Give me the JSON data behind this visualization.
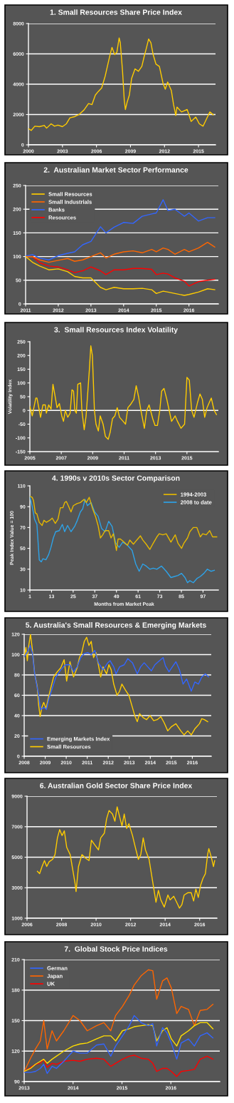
{
  "chart_data": [
    {
      "type": "line",
      "title": "1. Small Resources Share Price Index",
      "xlim": [
        2000,
        2016.5
      ],
      "xticks": [
        2000,
        2003,
        2006,
        2009,
        2012,
        2015
      ],
      "ylim": [
        0,
        8000
      ],
      "yticks": [
        0,
        2000,
        4000,
        6000,
        8000
      ],
      "grid": "y",
      "series": [
        {
          "color": "#ffcc00",
          "x": [
            2000.0,
            2000.25,
            2000.56,
            2000.97,
            2001.39,
            2001.6,
            2002.0,
            2002.3,
            2002.6,
            2003.0,
            2003.35,
            2003.66,
            2004.08,
            2004.5,
            2004.9,
            2005.3,
            2005.6,
            2005.9,
            2006.15,
            2006.46,
            2006.77,
            2007.08,
            2007.2,
            2007.37,
            2007.6,
            2007.8,
            2008.0,
            2008.1,
            2008.3,
            2008.45,
            2008.55,
            2008.7,
            2008.9,
            2009.1,
            2009.4,
            2009.7,
            2010.0,
            2010.2,
            2010.42,
            2010.6,
            2010.8,
            2011.0,
            2011.25,
            2011.55,
            2011.87,
            2012.07,
            2012.28,
            2012.6,
            2012.8,
            2013.0,
            2013.1,
            2013.5,
            2014.0,
            2014.35,
            2014.76,
            2015.07,
            2015.4,
            2015.6,
            2016.0,
            2016.3
          ],
          "values": [
            1070,
            950,
            1230,
            1200,
            1280,
            1100,
            1390,
            1230,
            1300,
            1200,
            1390,
            1780,
            1860,
            2020,
            2300,
            2720,
            2650,
            3280,
            3510,
            3750,
            4540,
            5560,
            5950,
            6430,
            5950,
            6110,
            7050,
            6740,
            4850,
            2960,
            2330,
            2800,
            3280,
            4380,
            5010,
            4850,
            5170,
            5800,
            6430,
            6980,
            6740,
            5950,
            5320,
            5170,
            4060,
            3670,
            4140,
            3590,
            2650,
            1940,
            2490,
            2170,
            2330,
            1540,
            1830,
            1390,
            1230,
            1540,
            2170,
            1980
          ]
        }
      ]
    },
    {
      "type": "line",
      "title": "2.  Australian Market Sector Performance",
      "xlim": [
        2011,
        2016.9
      ],
      "xticks": [
        2011,
        2012,
        2013,
        2014,
        2015,
        2016
      ],
      "ylim": [
        0,
        250
      ],
      "yticks": [
        0,
        50,
        100,
        150,
        200,
        250
      ],
      "grid": "y",
      "legend": "top left",
      "x": [
        2011.0,
        2011.21,
        2011.43,
        2011.71,
        2012.0,
        2012.29,
        2012.5,
        2012.75,
        2013.0,
        2013.29,
        2013.46,
        2013.71,
        2014.0,
        2014.29,
        2014.57,
        2014.86,
        2015.0,
        2015.21,
        2015.36,
        2015.57,
        2015.86,
        2016.0,
        2016.29,
        2016.57,
        2016.79
      ],
      "series": [
        {
          "name": "Small Resources",
          "color": "#ffcc00",
          "values": [
            100,
            88,
            80,
            72,
            74,
            68,
            58,
            55,
            55,
            35,
            30,
            35,
            32,
            32,
            33,
            30,
            22,
            27,
            25,
            22,
            18,
            20,
            25,
            32,
            30
          ]
        },
        {
          "name": "Small Industrials",
          "color": "#ff6600",
          "values": [
            100,
            100,
            93,
            88,
            92,
            96,
            90,
            93,
            100,
            108,
            97,
            105,
            110,
            112,
            108,
            115,
            110,
            118,
            115,
            105,
            115,
            110,
            118,
            130,
            120
          ]
        },
        {
          "name": "Banks",
          "color": "#3366ff",
          "values": [
            101,
            104,
            97,
            93,
            102,
            107,
            110,
            125,
            132,
            163,
            150,
            162,
            172,
            170,
            185,
            190,
            192,
            220,
            197,
            200,
            185,
            192,
            175,
            182,
            182
          ]
        },
        {
          "name": "Resources",
          "color": "#ff0000",
          "values": [
            100,
            100,
            87,
            80,
            78,
            72,
            66,
            70,
            78,
            70,
            62,
            72,
            72,
            75,
            75,
            73,
            62,
            65,
            63,
            55,
            48,
            38,
            47,
            50,
            52
          ]
        }
      ]
    },
    {
      "type": "line",
      "title": "3.  Small Resources Index Volatility",
      "ylabel": "Volatility Index",
      "xlim": [
        2005,
        2017.0
      ],
      "xticks": [
        2005,
        2007,
        2009,
        2011,
        2013,
        2015
      ],
      "ylim": [
        -150,
        250
      ],
      "yticks": [
        -150,
        -100,
        -50,
        0,
        50,
        100,
        150,
        200,
        250
      ],
      "grid": false,
      "ref_lines": [
        {
          "axis": "y",
          "value": 0,
          "color": "#ffffff"
        }
      ],
      "series": [
        {
          "color": "#ffcc00",
          "x": [
            2005.0,
            2005.15,
            2005.38,
            2005.45,
            2005.6,
            2005.68,
            2005.83,
            2005.98,
            2006.05,
            2006.2,
            2006.35,
            2006.47,
            2006.58,
            2006.73,
            2006.88,
            2007.03,
            2007.14,
            2007.26,
            2007.41,
            2007.56,
            2007.68,
            2007.78,
            2007.86,
            2007.96,
            2008.05,
            2008.23,
            2008.31,
            2008.46,
            2008.58,
            2008.68,
            2008.79,
            2008.88,
            2008.98,
            2009.11,
            2009.21,
            2009.36,
            2009.48,
            2009.66,
            2009.81,
            2009.99,
            2010.11,
            2010.26,
            2010.41,
            2010.56,
            2010.71,
            2010.94,
            2011.09,
            2011.24,
            2011.39,
            2011.62,
            2011.77,
            2011.92,
            2012.07,
            2012.29,
            2012.44,
            2012.59,
            2012.82,
            2012.97,
            2013.12,
            2013.27,
            2013.39,
            2013.54,
            2013.72,
            2013.87,
            2014.02,
            2014.25,
            2014.4,
            2014.62,
            2014.85,
            2015.0,
            2015.15,
            2015.3,
            2015.45,
            2015.68,
            2015.83,
            2015.98,
            2016.13,
            2016.28,
            2016.43,
            2016.55,
            2016.73,
            2016.88
          ],
          "values": [
            15,
            -20,
            45,
            45,
            0,
            -25,
            20,
            20,
            -10,
            20,
            5,
            95,
            60,
            10,
            25,
            -20,
            -40,
            0,
            -25,
            -10,
            75,
            70,
            0,
            -10,
            95,
            100,
            0,
            -70,
            -20,
            60,
            150,
            235,
            200,
            0,
            -50,
            -75,
            -20,
            -50,
            -95,
            -105,
            -80,
            -30,
            -20,
            10,
            -25,
            -40,
            -50,
            10,
            20,
            40,
            90,
            50,
            0,
            -65,
            0,
            20,
            -30,
            -55,
            -55,
            0,
            70,
            80,
            40,
            0,
            -40,
            -20,
            -40,
            -65,
            -50,
            120,
            110,
            0,
            -25,
            30,
            60,
            40,
            -25,
            10,
            30,
            45,
            0,
            -15
          ]
        }
      ]
    },
    {
      "type": "line",
      "title": "4. 1990s v 2010s Sector Comparison",
      "xlabel": "Months from Market Peak",
      "ylabel": "Peak Index Value = 100",
      "xlim": [
        1,
        105.5
      ],
      "xticks": [
        1,
        13,
        25,
        37,
        49,
        61,
        73,
        85,
        97
      ],
      "ylim": [
        10,
        110
      ],
      "yticks": [
        10,
        30,
        50,
        70,
        90,
        110
      ],
      "grid": false,
      "legend": "top right",
      "series": [
        {
          "name": "1994-2003",
          "color": "#e6b800",
          "x": [
            1,
            2.3,
            3.0,
            4.0,
            4.9,
            6.2,
            7.8,
            8.8,
            10.1,
            12.1,
            13.4,
            15.1,
            16.6,
            17.9,
            19.3,
            20.3,
            21.2,
            22.3,
            23.8,
            25.1,
            27.1,
            29.0,
            31.0,
            32.3,
            33.9,
            35.6,
            37.5,
            38.8,
            40.1,
            41.4,
            42.7,
            44.7,
            46.0,
            47.3,
            49.0,
            49.9,
            51.2,
            53.2,
            55.1,
            56.4,
            58.4,
            60.3,
            62.3,
            63.6,
            65.5,
            67.5,
            69.4,
            71.4,
            72.7,
            74.7,
            76.6,
            79.2,
            81.6,
            83.1,
            85.1,
            86.4,
            88.4,
            89.7,
            91.6,
            93.6,
            95.5,
            96.8,
            98.8,
            100.7,
            102.3,
            104.6
          ],
          "values": [
            100,
            99,
            96,
            84,
            83,
            75,
            72,
            77,
            75,
            77,
            79,
            74,
            78,
            89,
            89,
            94,
            95,
            91,
            85,
            91,
            93,
            94,
            97,
            94,
            99,
            89,
            80,
            72,
            60,
            63,
            67,
            67,
            60,
            64,
            48,
            59,
            59,
            56,
            53,
            58,
            54,
            58,
            62,
            58,
            54,
            49,
            55,
            61,
            64,
            63,
            64,
            56,
            63,
            55,
            50,
            55,
            60,
            66,
            70,
            70,
            61,
            64,
            63,
            67,
            61,
            61
          ]
        },
        {
          "name": "2008 to date",
          "color": "#2ea3e8",
          "x": [
            1,
            2.3,
            3.6,
            4.9,
            6.2,
            7.3,
            8.2,
            9.9,
            11.4,
            12.7,
            14.0,
            15.3,
            17.3,
            19.0,
            20.3,
            21.9,
            23.8,
            25.8,
            27.1,
            29.0,
            30.3,
            31.6,
            32.9,
            34.9,
            36.9,
            38.8,
            40.8,
            42.7,
            44.7,
            46.6,
            48.6,
            50.5,
            52.5,
            55.1,
            57.7,
            59.7,
            61.6,
            63.6,
            65.5,
            67.5,
            69.4,
            71.4,
            74.0,
            76.6,
            79.2,
            81.2,
            83.1,
            85.1,
            87.0,
            88.4,
            89.7,
            91.6,
            93.6,
            95.5,
            97.5,
            99.4,
            101.4,
            103.3
          ],
          "values": [
            100,
            90,
            78,
            73,
            39,
            37,
            40,
            39,
            44,
            51,
            60,
            66,
            67,
            73,
            66,
            72,
            66,
            71,
            76,
            85,
            88,
            97,
            91,
            94,
            85,
            81,
            69,
            66,
            76,
            71,
            55,
            51,
            56,
            53,
            48,
            35,
            28,
            35,
            33,
            30,
            31,
            30,
            33,
            28,
            22,
            23,
            24,
            26,
            22,
            17,
            19,
            17,
            21,
            23,
            26,
            30,
            28,
            29
          ]
        }
      ]
    },
    {
      "type": "line",
      "title": "5. Australia's Small Resources & Emerging Markets",
      "xlim": [
        2008,
        2016.9
      ],
      "xticks": [
        2008,
        2009,
        2010,
        2011,
        2012,
        2013,
        2014,
        2015,
        2016
      ],
      "ylim": [
        0,
        120
      ],
      "yticks": [
        0,
        20,
        40,
        60,
        80,
        100,
        120
      ],
      "grid": "y",
      "legend": "bottom left",
      "series": [
        {
          "name": "Emerging Markets Index",
          "color": "#3366ff",
          "x": [
            2008.0,
            2008.17,
            2008.28,
            2008.39,
            2008.5,
            2008.67,
            2008.78,
            2008.95,
            2009.06,
            2009.18,
            2009.34,
            2009.51,
            2009.74,
            2009.96,
            2010.18,
            2010.35,
            2010.52,
            2010.69,
            2010.86,
            2011.02,
            2011.19,
            2011.36,
            2011.53,
            2011.75,
            2011.98,
            2012.09,
            2012.26,
            2012.37,
            2012.54,
            2012.76,
            2012.93,
            2013.15,
            2013.38,
            2013.54,
            2013.71,
            2013.88,
            2014.05,
            2014.22,
            2014.38,
            2014.61,
            2014.72,
            2014.89,
            2015.05,
            2015.22,
            2015.39,
            2015.56,
            2015.73,
            2015.95,
            2016.12,
            2016.29,
            2016.45,
            2016.62,
            2016.77
          ],
          "values": [
            98,
            103,
            109,
            102,
            81,
            62,
            46,
            48,
            46,
            57,
            67,
            78,
            85,
            90,
            90,
            83,
            88,
            97,
            101,
            102,
            100,
            104,
            92,
            85,
            92,
            94,
            88,
            81,
            88,
            90,
            96,
            92,
            81,
            88,
            92,
            88,
            84,
            90,
            93,
            97,
            89,
            83,
            88,
            93,
            85,
            71,
            76,
            64,
            73,
            71,
            78,
            81,
            78
          ]
        },
        {
          "name": "Small Resources",
          "color": "#ffcc00",
          "x": [
            2008.0,
            2008.08,
            2008.15,
            2008.22,
            2008.3,
            2008.39,
            2008.5,
            2008.62,
            2008.69,
            2008.76,
            2008.84,
            2008.93,
            2009.04,
            2009.18,
            2009.29,
            2009.4,
            2009.57,
            2009.74,
            2009.9,
            2010.02,
            2010.18,
            2010.35,
            2010.52,
            2010.63,
            2010.74,
            2010.86,
            2010.97,
            2011.08,
            2011.19,
            2011.3,
            2011.42,
            2011.53,
            2011.64,
            2011.75,
            2011.92,
            2012.03,
            2012.14,
            2012.26,
            2012.42,
            2012.54,
            2012.65,
            2012.82,
            2012.98,
            2013.15,
            2013.26,
            2013.38,
            2013.49,
            2013.66,
            2013.82,
            2013.99,
            2014.16,
            2014.33,
            2014.5,
            2014.66,
            2014.83,
            2015.0,
            2015.22,
            2015.45,
            2015.61,
            2015.78,
            2015.95,
            2016.12,
            2016.34,
            2016.45,
            2016.57,
            2016.73
          ],
          "values": [
            97,
            107,
            94,
            109,
            120,
            105,
            81,
            69,
            50,
            39,
            48,
            53,
            47,
            60,
            69,
            78,
            83,
            87,
            95,
            74,
            93,
            78,
            87,
            97,
            102,
            113,
            117,
            109,
            113,
            97,
            102,
            90,
            78,
            88,
            81,
            90,
            85,
            71,
            60,
            64,
            71,
            65,
            60,
            48,
            40,
            34,
            42,
            38,
            36,
            40,
            35,
            36,
            39,
            33,
            25,
            29,
            32,
            25,
            21,
            25,
            21,
            27,
            32,
            37,
            36,
            34
          ]
        }
      ]
    },
    {
      "type": "line",
      "title": "6. Australian Gold Sector Share Price Index",
      "xlim": [
        2006,
        2017.0
      ],
      "xticks": [
        2006,
        2008,
        2010,
        2012,
        2014,
        2016
      ],
      "ylim": [
        1000,
        9000
      ],
      "yticks": [
        1000,
        3000,
        5000,
        7000,
        9000
      ],
      "grid": "y",
      "series": [
        {
          "color": "#ffcc00",
          "x": [
            2006.6,
            2006.73,
            2006.87,
            2007.01,
            2007.14,
            2007.28,
            2007.48,
            2007.62,
            2007.76,
            2007.89,
            2008.03,
            2008.16,
            2008.3,
            2008.5,
            2008.64,
            2008.78,
            2008.84,
            2008.98,
            2009.18,
            2009.39,
            2009.59,
            2009.73,
            2009.93,
            2010.14,
            2010.27,
            2010.48,
            2010.61,
            2010.75,
            2010.95,
            2011.09,
            2011.22,
            2011.36,
            2011.5,
            2011.63,
            2011.77,
            2011.9,
            2012.11,
            2012.24,
            2012.45,
            2012.59,
            2012.73,
            2012.86,
            2013.07,
            2013.27,
            2013.47,
            2013.61,
            2013.75,
            2013.95,
            2014.16,
            2014.29,
            2014.5,
            2014.7,
            2014.83,
            2014.97,
            2015.1,
            2015.31,
            2015.51,
            2015.65,
            2015.78,
            2015.92,
            2016.05,
            2016.19,
            2016.33,
            2016.46,
            2016.53,
            2016.67,
            2016.8,
            2016.87
          ],
          "values": [
            4080,
            3920,
            4390,
            4780,
            4390,
            4700,
            4860,
            5170,
            6270,
            6810,
            6420,
            6730,
            5640,
            5170,
            4230,
            3300,
            2750,
            4390,
            5170,
            4940,
            4780,
            6110,
            5800,
            5480,
            6270,
            6580,
            7520,
            8060,
            7830,
            7360,
            8300,
            7670,
            7050,
            7830,
            6890,
            7200,
            6420,
            5800,
            4860,
            5170,
            6270,
            5480,
            4860,
            3450,
            2050,
            2830,
            2200,
            1730,
            2520,
            2200,
            2440,
            1970,
            1660,
            1890,
            2520,
            2670,
            2670,
            2130,
            2910,
            2360,
            3140,
            3610,
            3920,
            5170,
            5560,
            5020,
            4390,
            4780
          ]
        }
      ]
    },
    {
      "type": "line",
      "title": "7.  Global Stock Price Indices",
      "xlim": [
        2013,
        2017.0
      ],
      "xticks": [
        2013,
        2014,
        2015,
        2016
      ],
      "ylim": [
        90,
        210
      ],
      "yticks": [
        90,
        120,
        150,
        180,
        210
      ],
      "grid": "y",
      "legend": "top left",
      "x": [
        2013.0,
        2013.13,
        2013.23,
        2013.33,
        2013.4,
        2013.47,
        2013.57,
        2013.66,
        2013.81,
        2014.0,
        2014.14,
        2014.29,
        2014.48,
        2014.63,
        2014.77,
        2014.87,
        2015.01,
        2015.15,
        2015.25,
        2015.39,
        2015.54,
        2015.63,
        2015.71,
        2015.83,
        2015.92,
        2016.01,
        2016.12,
        2016.21,
        2016.36,
        2016.48,
        2016.6,
        2016.74,
        2016.86
      ],
      "series": [
        {
          "name": "German",
          "color": "#3366ff",
          "values": [
            99,
            99,
            100,
            103,
            107,
            98,
            105,
            103,
            110,
            120,
            118,
            118,
            126,
            127,
            115,
            125,
            135,
            145,
            155,
            148,
            145,
            147,
            125,
            143,
            138,
            128,
            112,
            128,
            132,
            125,
            135,
            138,
            133
          ]
        },
        {
          "color": "#ffdd00",
          "values": [
            100,
            103,
            107,
            110,
            112,
            108,
            112,
            115,
            120,
            125,
            127,
            128,
            132,
            135,
            135,
            130,
            140,
            142,
            144,
            145,
            146,
            145,
            130,
            140,
            143,
            132,
            125,
            135,
            140,
            145,
            148,
            148,
            142
          ]
        },
        {
          "name": "Japan",
          "color": "#ff6600",
          "values": [
            100,
            113,
            122,
            130,
            150,
            122,
            140,
            130,
            140,
            155,
            150,
            140,
            145,
            148,
            140,
            155,
            164,
            175,
            185,
            194,
            200,
            199,
            171,
            189,
            192,
            182,
            157,
            164,
            161,
            145,
            160,
            161,
            166
          ]
        },
        {
          "name": "UK",
          "color": "#ff0000",
          "values": [
            100,
            104,
            107,
            108,
            112,
            104,
            108,
            107,
            110,
            111,
            110,
            112,
            113,
            112,
            105,
            108,
            112,
            115,
            116,
            113,
            112,
            108,
            100,
            103,
            103,
            100,
            95,
            100,
            101,
            102,
            112,
            115,
            112
          ]
        }
      ]
    }
  ]
}
